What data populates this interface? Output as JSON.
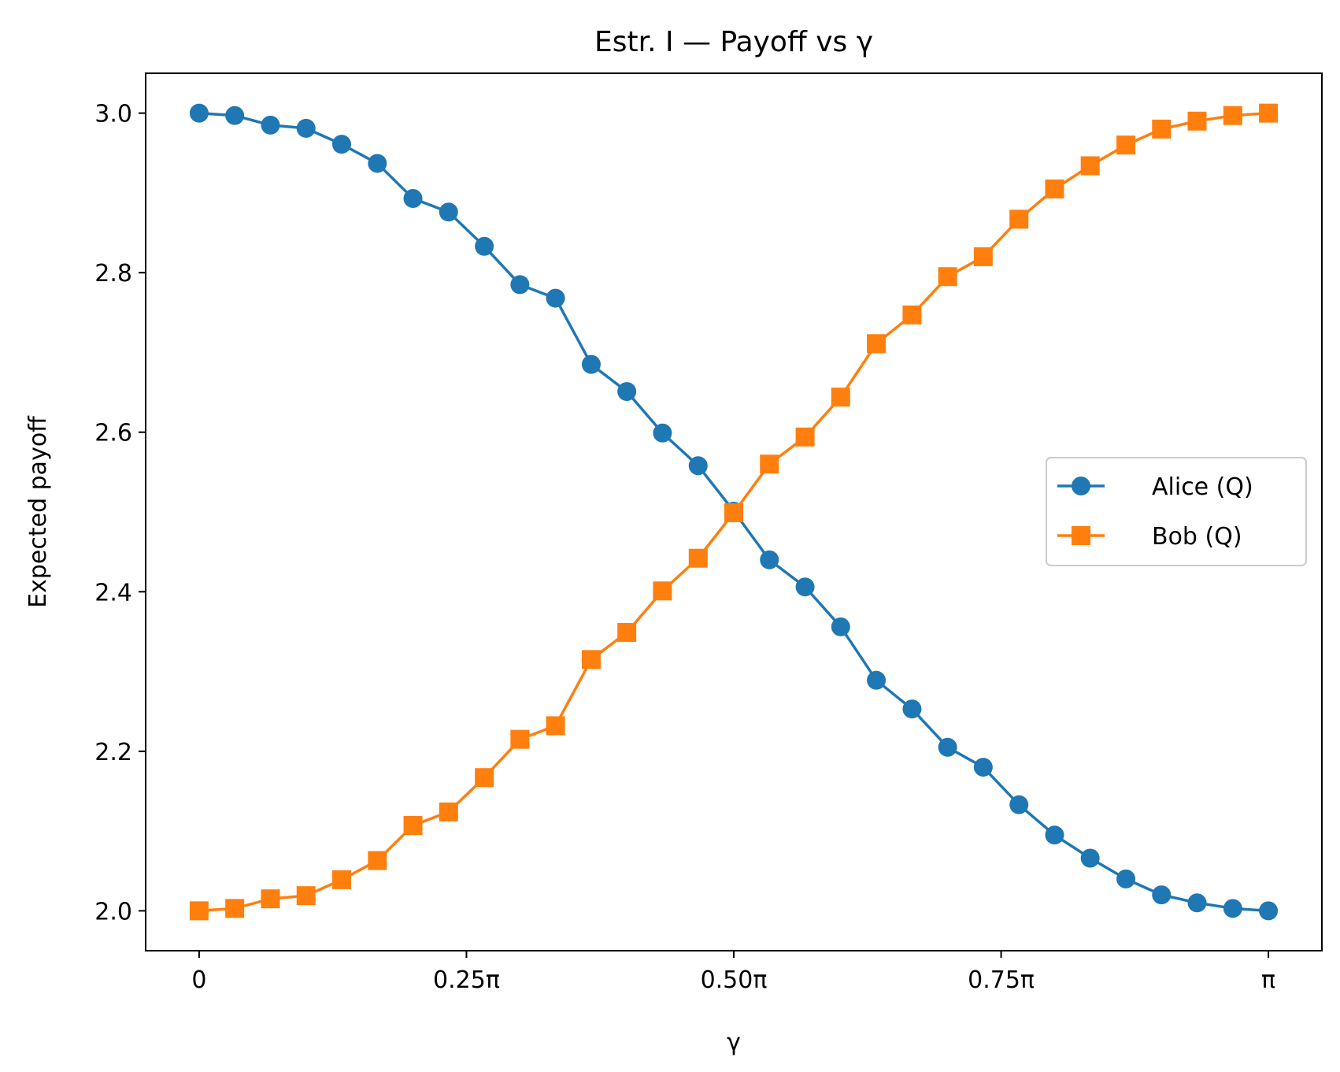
{
  "chart_data": {
    "type": "line",
    "title": "Estr. I — Payoff vs γ",
    "xlabel": "γ",
    "ylabel": "Expected payoff",
    "x_unit": "π",
    "xlim": [
      -0.05,
      1.05
    ],
    "ylim": [
      1.95,
      3.05
    ],
    "x_ticks": [
      {
        "value": 0,
        "label": "0"
      },
      {
        "value": 0.25,
        "label": "0.25π"
      },
      {
        "value": 0.5,
        "label": "0.50π"
      },
      {
        "value": 0.75,
        "label": "0.75π"
      },
      {
        "value": 1,
        "label": "π"
      }
    ],
    "y_ticks": [
      {
        "value": 2.0,
        "label": "2.0"
      },
      {
        "value": 2.2,
        "label": "2.2"
      },
      {
        "value": 2.4,
        "label": "2.4"
      },
      {
        "value": 2.6,
        "label": "2.6"
      },
      {
        "value": 2.8,
        "label": "2.8"
      },
      {
        "value": 3.0,
        "label": "3.0"
      }
    ],
    "grid": false,
    "legend_position": "center-right",
    "x": [
      0,
      0.0333,
      0.0667,
      0.1,
      0.1333,
      0.1667,
      0.2,
      0.2333,
      0.2667,
      0.3,
      0.3333,
      0.3667,
      0.4,
      0.4333,
      0.4667,
      0.5,
      0.5333,
      0.5667,
      0.6,
      0.6333,
      0.6667,
      0.7,
      0.7333,
      0.7667,
      0.8,
      0.8333,
      0.8667,
      0.9,
      0.9333,
      0.9667,
      1.0
    ],
    "series": [
      {
        "name": "Alice (Q)",
        "color": "#1f77b4",
        "marker": "circle",
        "values": [
          3.0,
          2.997,
          2.985,
          2.981,
          2.961,
          2.937,
          2.893,
          2.876,
          2.833,
          2.785,
          2.768,
          2.685,
          2.651,
          2.599,
          2.558,
          2.501,
          2.44,
          2.406,
          2.356,
          2.289,
          2.253,
          2.205,
          2.18,
          2.133,
          2.095,
          2.066,
          2.04,
          2.02,
          2.01,
          2.003,
          2.0
        ]
      },
      {
        "name": "Bob (Q)",
        "color": "#ff7f0e",
        "marker": "square",
        "values": [
          2.0,
          2.003,
          2.015,
          2.019,
          2.039,
          2.063,
          2.107,
          2.124,
          2.167,
          2.215,
          2.232,
          2.315,
          2.349,
          2.401,
          2.442,
          2.499,
          2.56,
          2.594,
          2.644,
          2.711,
          2.747,
          2.795,
          2.82,
          2.867,
          2.905,
          2.934,
          2.96,
          2.98,
          2.99,
          2.997,
          3.0
        ]
      }
    ]
  }
}
